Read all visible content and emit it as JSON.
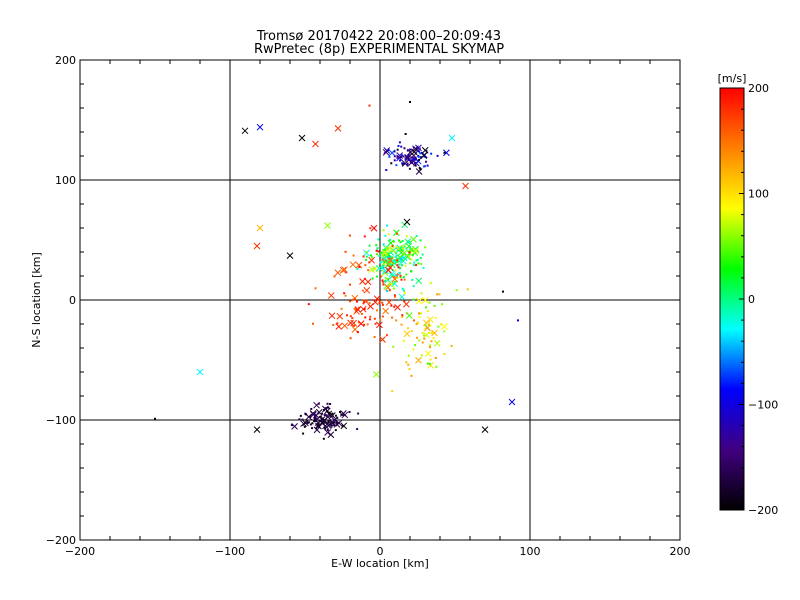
{
  "chart_data": {
    "type": "scatter",
    "title": "Tromsø 20170422 20:08:00–20:09:43",
    "subtitle": "RwPretec (8p) EXPERIMENTAL SKYMAP",
    "xlabel": "E-W location [km]",
    "ylabel": "N-S location [km]",
    "xlim": [
      -200,
      200
    ],
    "ylim": [
      -200,
      200
    ],
    "xticks": [
      "−200",
      "−100",
      "0",
      "100",
      "200"
    ],
    "yticks": [
      "−200",
      "−100",
      "0",
      "100",
      "200"
    ],
    "grid": true,
    "colorbar": {
      "label": "[m/s]",
      "range": [
        -200,
        200
      ],
      "ticks": [
        "200",
        "100",
        "0",
        "−100",
        "−200"
      ],
      "colors": [
        "#ff0000",
        "#ff8000",
        "#ffff00",
        "#00ff00",
        "#00ffff",
        "#0000ff",
        "#400080",
        "#000000"
      ]
    },
    "marker_types": [
      "x (large)",
      "dot (small)"
    ],
    "point_clusters": [
      {
        "center": [
          20,
          118
        ],
        "spread": [
          14,
          9
        ],
        "count": 90,
        "velocity": [
          -200,
          -60
        ]
      },
      {
        "center": [
          10,
          35
        ],
        "spread": [
          15,
          18
        ],
        "count": 190,
        "velocity": [
          -40,
          80
        ]
      },
      {
        "center": [
          -10,
          -10
        ],
        "spread": [
          22,
          14
        ],
        "count": 70,
        "velocity": [
          140,
          200
        ]
      },
      {
        "center": [
          30,
          -25
        ],
        "spread": [
          18,
          30
        ],
        "count": 80,
        "velocity": [
          40,
          140
        ]
      },
      {
        "center": [
          -38,
          -100
        ],
        "spread": [
          12,
          10
        ],
        "count": 110,
        "velocity": [
          -200,
          -150
        ]
      },
      {
        "center": [
          0,
          20
        ],
        "spread": [
          28,
          30
        ],
        "count": 60,
        "velocity": [
          150,
          200
        ]
      }
    ],
    "notable_points": [
      {
        "x": -90,
        "y": 141,
        "v": -200,
        "marker": "x"
      },
      {
        "x": -80,
        "y": 144,
        "v": -90,
        "marker": "x"
      },
      {
        "x": -52,
        "y": 135,
        "v": -200,
        "marker": "x"
      },
      {
        "x": -43,
        "y": 130,
        "v": 180,
        "marker": "x"
      },
      {
        "x": -28,
        "y": 143,
        "v": 180,
        "marker": "x"
      },
      {
        "x": 48,
        "y": 135,
        "v": -30,
        "marker": "x"
      },
      {
        "x": 57,
        "y": 95,
        "v": 180,
        "marker": "x"
      },
      {
        "x": -80,
        "y": 60,
        "v": 120,
        "marker": "x"
      },
      {
        "x": -82,
        "y": 45,
        "v": 180,
        "marker": "x"
      },
      {
        "x": -35,
        "y": 62,
        "v": 60,
        "marker": "x"
      },
      {
        "x": -60,
        "y": 37,
        "v": -200,
        "marker": "x"
      },
      {
        "x": 18,
        "y": 65,
        "v": -200,
        "marker": "x"
      },
      {
        "x": -120,
        "y": -60,
        "v": -30,
        "marker": "x"
      },
      {
        "x": 88,
        "y": -85,
        "v": -90,
        "marker": "x"
      },
      {
        "x": 70,
        "y": -108,
        "v": -200,
        "marker": "x"
      },
      {
        "x": -82,
        "y": -108,
        "v": -200,
        "marker": "x"
      },
      {
        "x": -150,
        "y": -99,
        "v": -200,
        "marker": "dot"
      },
      {
        "x": 82,
        "y": 7,
        "v": -200,
        "marker": "dot"
      },
      {
        "x": 92,
        "y": -17,
        "v": -90,
        "marker": "dot"
      },
      {
        "x": 20,
        "y": 165,
        "v": -200,
        "marker": "dot"
      },
      {
        "x": -7,
        "y": 162,
        "v": 180,
        "marker": "dot"
      }
    ]
  }
}
